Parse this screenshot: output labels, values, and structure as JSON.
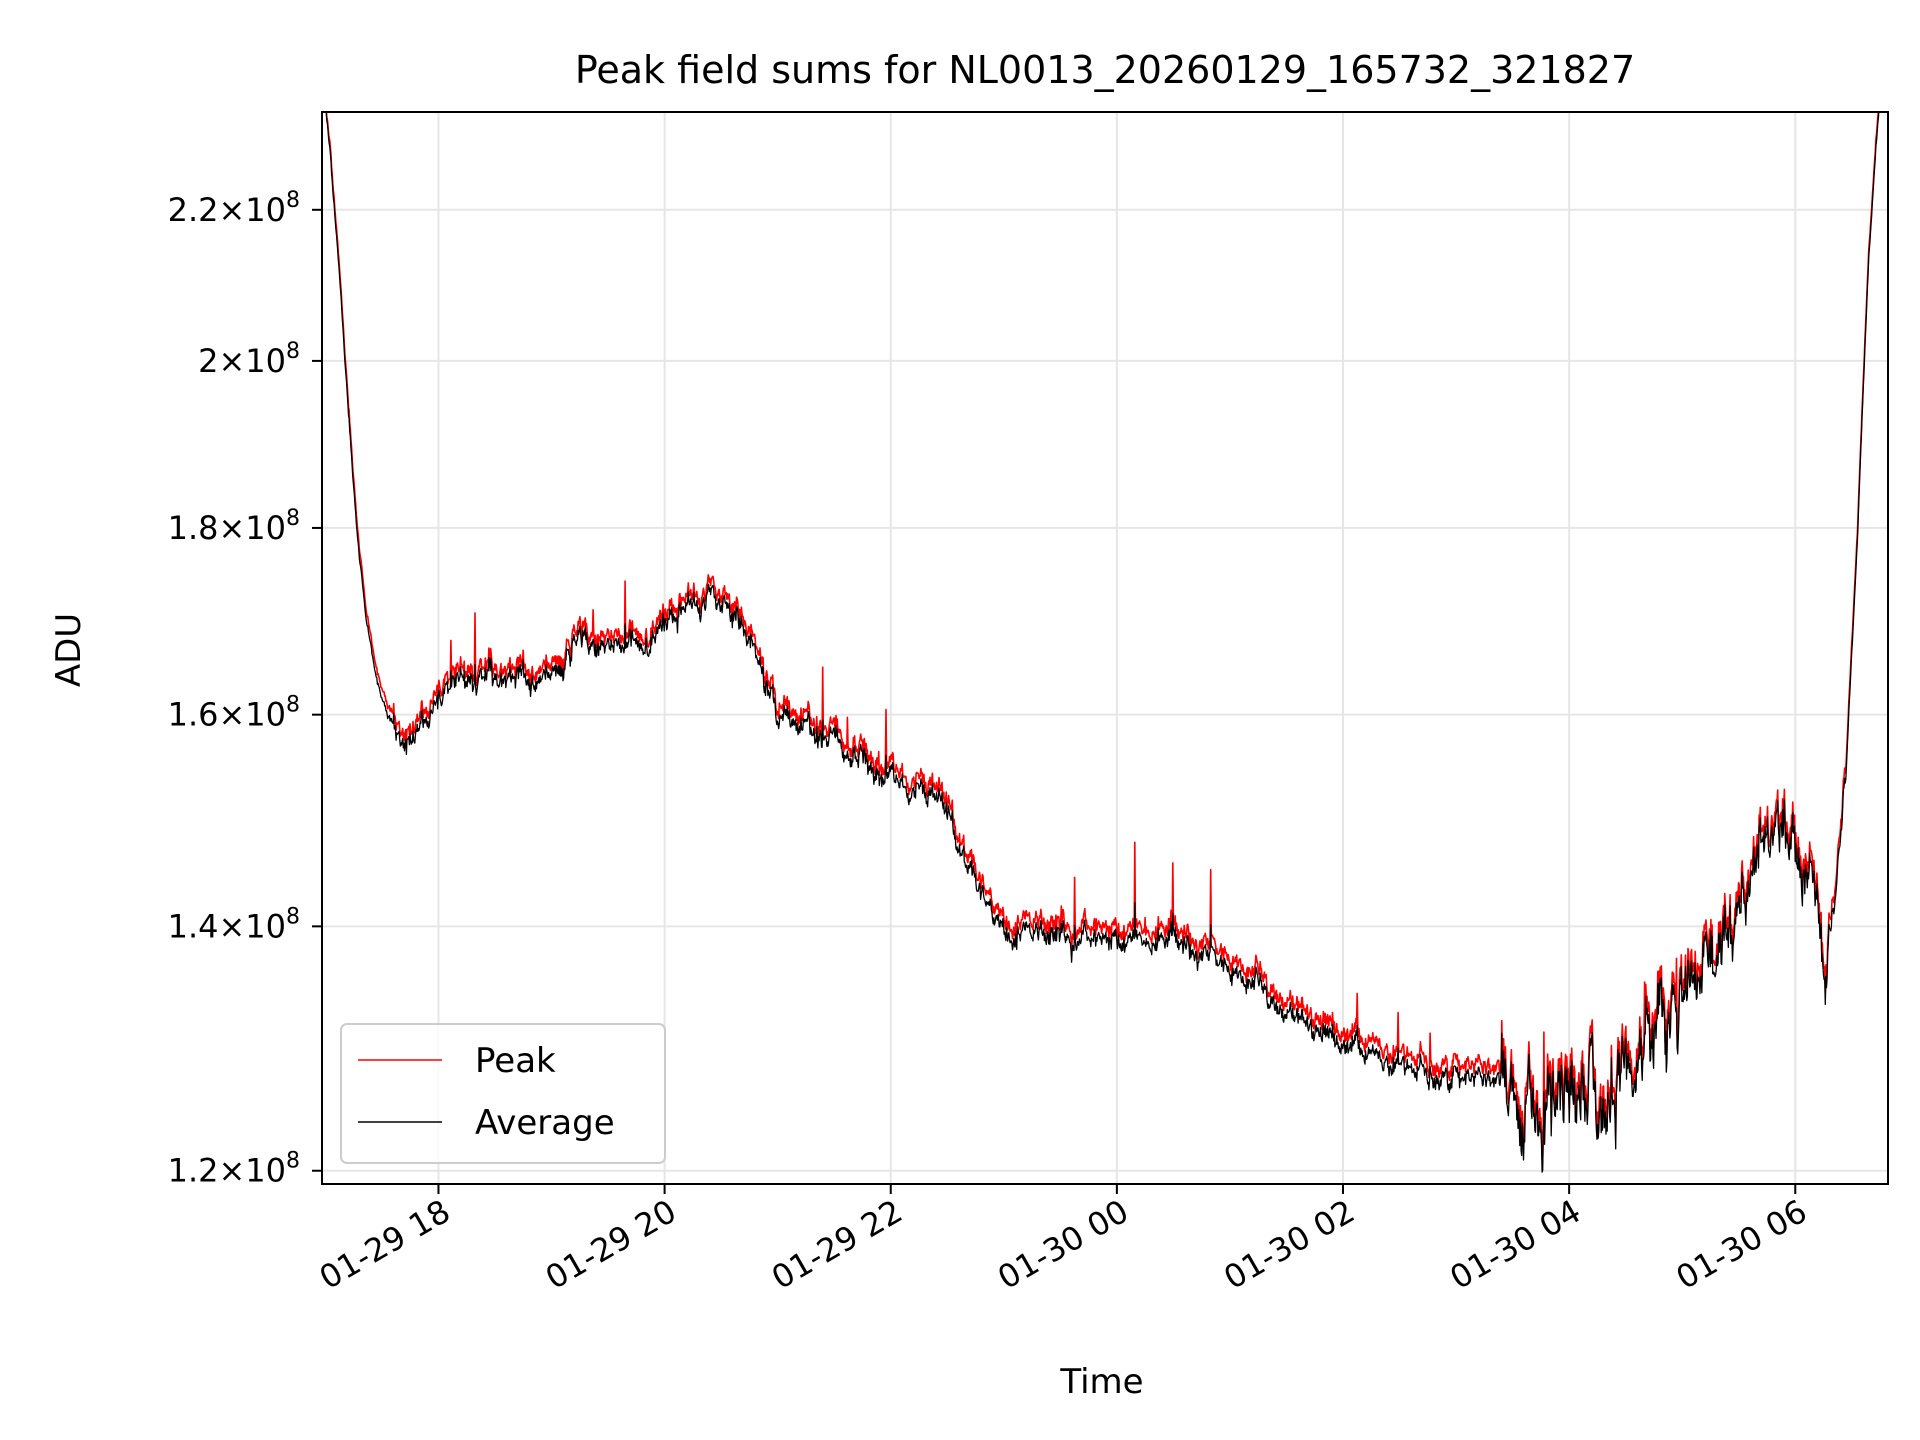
{
  "chart_data": {
    "type": "line",
    "title": "Peak field sums for NL0013_20260129_165732_321827",
    "xlabel": "Time",
    "ylabel": "ADU",
    "yscale": "log",
    "ylim": [
      119000000,
      234000000
    ],
    "xlim_hours_from_0129_0000": [
      16.97,
      30.82
    ],
    "grid": true,
    "legend_position": "lower-left",
    "x_ticks": [
      {
        "hour": 18,
        "label": "01-29 18"
      },
      {
        "hour": 20,
        "label": "01-29 20"
      },
      {
        "hour": 22,
        "label": "01-29 22"
      },
      {
        "hour": 24,
        "label": "01-30 00"
      },
      {
        "hour": 26,
        "label": "01-30 02"
      },
      {
        "hour": 28,
        "label": "01-30 04"
      },
      {
        "hour": 30,
        "label": "01-30 06"
      }
    ],
    "y_ticks": [
      {
        "value": 120000000,
        "mantissa": "1.2",
        "exp": "8"
      },
      {
        "value": 140000000,
        "mantissa": "1.4",
        "exp": "8"
      },
      {
        "value": 160000000,
        "mantissa": "1.6",
        "exp": "8"
      },
      {
        "value": 180000000,
        "mantissa": "1.8",
        "exp": "8"
      },
      {
        "value": 200000000,
        "mantissa": "2",
        "exp": "8"
      },
      {
        "value": 220000000,
        "mantissa": "2.2",
        "exp": "8"
      }
    ],
    "times_hours": [
      16.97,
      17.05,
      17.12,
      17.2,
      17.28,
      17.36,
      17.45,
      17.55,
      17.65,
      17.75,
      18.0,
      18.5,
      19.0,
      19.25,
      19.5,
      19.9,
      20.0,
      20.3,
      20.6,
      20.8,
      21.0,
      21.5,
      22.0,
      22.4,
      22.7,
      23.0,
      23.5,
      24.0,
      24.5,
      25.0,
      25.5,
      26.0,
      26.5,
      27.0,
      27.5,
      28.0,
      28.5,
      29.0,
      29.5,
      29.7,
      30.0,
      30.2,
      30.28,
      30.35,
      30.45,
      30.55,
      30.65,
      30.75,
      30.82
    ],
    "series": [
      {
        "name": "Peak",
        "color": "#ff0000",
        "values": [
          240000000,
          228000000,
          213000000,
          195000000,
          180000000,
          171000000,
          165000000,
          161000000,
          159000000,
          158000000,
          163000000,
          165000000,
          165000000,
          169000000,
          168000000,
          169000000,
          171000000,
          173000000,
          171000000,
          168000000,
          161000000,
          158000000,
          155000000,
          153000000,
          146000000,
          141000000,
          140000000,
          140000000,
          140000000,
          137000000,
          134000000,
          131000000,
          129000000,
          128000000,
          127000000,
          126000000,
          129000000,
          135000000,
          143000000,
          150000000,
          147000000,
          144000000,
          138000000,
          143000000,
          155000000,
          180000000,
          215000000,
          238000000,
          240000000
        ]
      },
      {
        "name": "Average",
        "color": "#000000",
        "values": [
          240000000,
          227000000,
          212000000,
          194000000,
          179000000,
          170000000,
          164000000,
          160000000,
          158000000,
          157000000,
          162000000,
          164000000,
          164000000,
          168000000,
          167000000,
          168000000,
          170000000,
          172000000,
          170000000,
          167000000,
          160000000,
          157000000,
          154000000,
          152000000,
          145000000,
          140000000,
          139000000,
          139000000,
          139000000,
          136000000,
          133000000,
          130000000,
          128000000,
          127000000,
          126000000,
          125000000,
          128000000,
          134000000,
          142000000,
          149000000,
          146000000,
          143000000,
          137000000,
          142000000,
          154000000,
          179000000,
          214000000,
          237000000,
          240000000
        ]
      }
    ]
  }
}
